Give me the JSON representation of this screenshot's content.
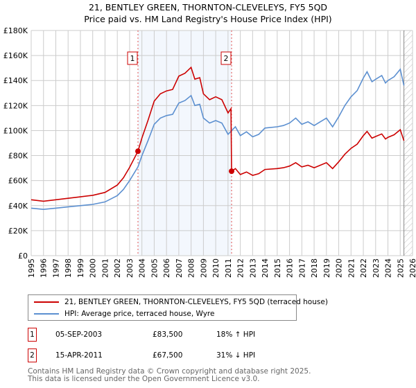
{
  "chart_data": {
    "type": "line",
    "title": "21, BENTLEY GREEN, THORNTON-CLEVELEYS, FY5 5QD",
    "subtitle": "Price paid vs. HM Land Registry's House Price Index (HPI)",
    "xlim": [
      1995,
      2026
    ],
    "ylim": [
      0,
      180000
    ],
    "x_ticks": [
      "1995",
      "1996",
      "1997",
      "1998",
      "1999",
      "2000",
      "2001",
      "2002",
      "2003",
      "2004",
      "2005",
      "2006",
      "2007",
      "2008",
      "2009",
      "2010",
      "2011",
      "2012",
      "2013",
      "2014",
      "2015",
      "2016",
      "2017",
      "2018",
      "2019",
      "2020",
      "2021",
      "2022",
      "2023",
      "2024",
      "2025",
      "2026"
    ],
    "y_ticks": [
      {
        "v": 0,
        "label": "£0"
      },
      {
        "v": 20000,
        "label": "£20K"
      },
      {
        "v": 40000,
        "label": "£40K"
      },
      {
        "v": 60000,
        "label": "£60K"
      },
      {
        "v": 80000,
        "label": "£80K"
      },
      {
        "v": 100000,
        "label": "£100K"
      },
      {
        "v": 120000,
        "label": "£120K"
      },
      {
        "v": 140000,
        "label": "£140K"
      },
      {
        "v": 160000,
        "label": "£160K"
      },
      {
        "v": 180000,
        "label": "£180K"
      }
    ],
    "grid": true,
    "hpi_x": [
      1995,
      1996,
      1997,
      1998,
      1999,
      2000,
      2001,
      2002,
      2002.5,
      2003,
      2003.68,
      2004,
      2004.5,
      2005,
      2005.5,
      2006,
      2006.5,
      2007,
      2007.5,
      2008,
      2008.3,
      2008.7,
      2009,
      2009.5,
      2010,
      2010.5,
      2011,
      2011.3,
      2011.6,
      2012,
      2012.5,
      2013,
      2013.5,
      2014,
      2015,
      2015.5,
      2016,
      2016.5,
      2017,
      2017.5,
      2018,
      2018.5,
      2019,
      2019.5,
      2020,
      2020.5,
      2021,
      2021.5,
      2022,
      2022.3,
      2022.7,
      2023,
      2023.5,
      2023.8,
      2024,
      2024.5,
      2025,
      2025.3
    ],
    "hpi_y": [
      38000,
      37000,
      38000,
      39000,
      40000,
      41000,
      43000,
      48000,
      53000,
      60000,
      71000,
      80000,
      92000,
      105000,
      110000,
      112000,
      113000,
      122000,
      124000,
      128000,
      120000,
      121000,
      110000,
      106000,
      108000,
      106000,
      97000,
      100000,
      103000,
      96000,
      99000,
      95000,
      97000,
      102000,
      103000,
      104000,
      106000,
      110000,
      105000,
      107000,
      104000,
      107000,
      110000,
      103000,
      111000,
      120000,
      127000,
      132000,
      142000,
      147000,
      139000,
      141000,
      144000,
      138000,
      140000,
      143000,
      149000,
      136000
    ],
    "series": [
      {
        "name": "21, BENTLEY GREEN, THORNTON-CLEVELEYS, FY5 5QD (terraced house)",
        "color": "#cc0000"
      },
      {
        "name": "HPI: Average price, terraced house, Wyre",
        "color": "#5b8fd0"
      }
    ],
    "sales": [
      {
        "id": "1",
        "x": 2003.68,
        "date": "05-SEP-2003",
        "price": 83500,
        "price_label": "£83,500",
        "hpi_diff": "18% ↑ HPI"
      },
      {
        "id": "2",
        "x": 2011.29,
        "date": "15-APR-2011",
        "price": 67500,
        "price_label": "£67,500",
        "hpi_diff": "31% ↓ HPI"
      }
    ],
    "forecast_start": 2025.3
  },
  "footer": [
    "Contains HM Land Registry data © Crown copyright and database right 2025.",
    "This data is licensed under the Open Government Licence v3.0."
  ]
}
